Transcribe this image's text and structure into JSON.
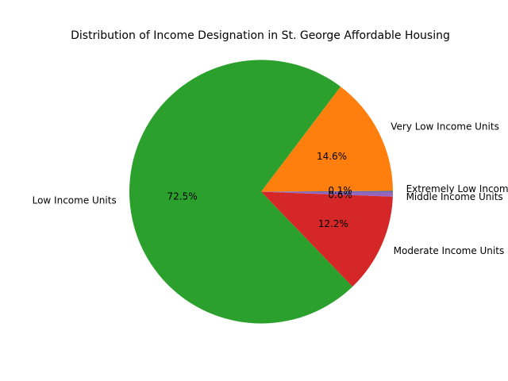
{
  "chart_data": {
    "type": "pie",
    "title": "Distribution of Income Designation in St. George Affordable Housing",
    "categories": [
      "Extremely Low Income Units",
      "Very Low Income Units",
      "Low Income Units",
      "Moderate Income Units",
      "Middle Income Units"
    ],
    "values": [
      0.1,
      14.6,
      72.5,
      12.2,
      0.6
    ],
    "percent_labels": [
      "0.1%",
      "14.6%",
      "72.5%",
      "12.2%",
      "0.6%"
    ],
    "colors": [
      "#1f77b4",
      "#ff7f0e",
      "#2ca02c",
      "#d62728",
      "#9467bd"
    ],
    "start_angle_deg": 0,
    "direction": "counterclockwise",
    "legend": "none"
  }
}
